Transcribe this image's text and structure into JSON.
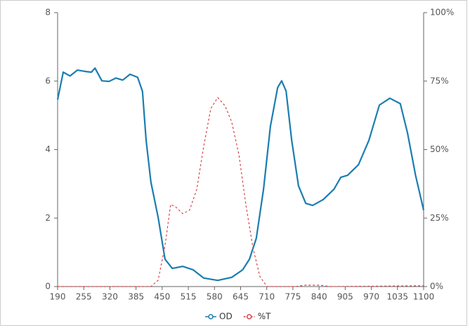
{
  "chart_data": {
    "type": "line",
    "xlim": [
      190,
      1100
    ],
    "xticks": [
      190,
      255,
      320,
      385,
      450,
      515,
      580,
      645,
      710,
      775,
      840,
      905,
      970,
      1035,
      1100
    ],
    "ylim": [
      0,
      8
    ],
    "yticks": [
      0,
      2,
      4,
      6,
      8
    ],
    "y2lim": [
      0,
      100
    ],
    "y2ticks": [
      {
        "value": 0,
        "label": "0%"
      },
      {
        "value": 25,
        "label": "25%"
      },
      {
        "value": 50,
        "label": "50%"
      },
      {
        "value": 75,
        "label": "75%"
      },
      {
        "value": 100,
        "label": "100%"
      }
    ],
    "legend": "bottom",
    "series": [
      {
        "name": "OD",
        "color": "#1a7db0",
        "dash": false,
        "x": [
          190,
          204,
          221,
          239,
          260,
          274,
          283,
          300,
          318,
          335,
          352,
          370,
          389,
          401,
          410,
          422,
          440,
          457,
          475,
          501,
          527,
          553,
          588,
          623,
          650,
          667,
          684,
          702,
          719,
          737,
          747,
          758,
          772,
          789,
          807,
          824,
          850,
          877,
          894,
          911,
          938,
          964,
          990,
          1016,
          1042,
          1060,
          1080,
          1100
        ],
        "values": [
          5.46,
          6.26,
          6.15,
          6.32,
          6.28,
          6.26,
          6.38,
          6.01,
          5.99,
          6.09,
          6.03,
          6.2,
          6.11,
          5.7,
          4.27,
          3.05,
          2.02,
          0.8,
          0.53,
          0.59,
          0.49,
          0.25,
          0.18,
          0.27,
          0.49,
          0.8,
          1.41,
          2.84,
          4.68,
          5.81,
          6.01,
          5.71,
          4.27,
          2.94,
          2.43,
          2.37,
          2.54,
          2.84,
          3.19,
          3.25,
          3.56,
          4.27,
          5.3,
          5.5,
          5.34,
          4.48,
          3.25,
          2.23
        ]
      },
      {
        "name": "%T",
        "color": "#d9434a",
        "dash": true,
        "axis": "y2",
        "x": [
          190,
          422,
          440,
          457,
          471,
          484,
          501,
          518,
          536,
          553,
          571,
          588,
          606,
          623,
          641,
          658,
          676,
          693,
          711,
          780,
          807,
          842,
          868,
          1095,
          1100
        ],
        "values": [
          0,
          0,
          2.3,
          15,
          30,
          29,
          26.6,
          27.9,
          35.5,
          51,
          65,
          69,
          66,
          60,
          48,
          30,
          14,
          3.6,
          0,
          0,
          0.5,
          0.5,
          0,
          0.3,
          0.3
        ]
      }
    ]
  }
}
